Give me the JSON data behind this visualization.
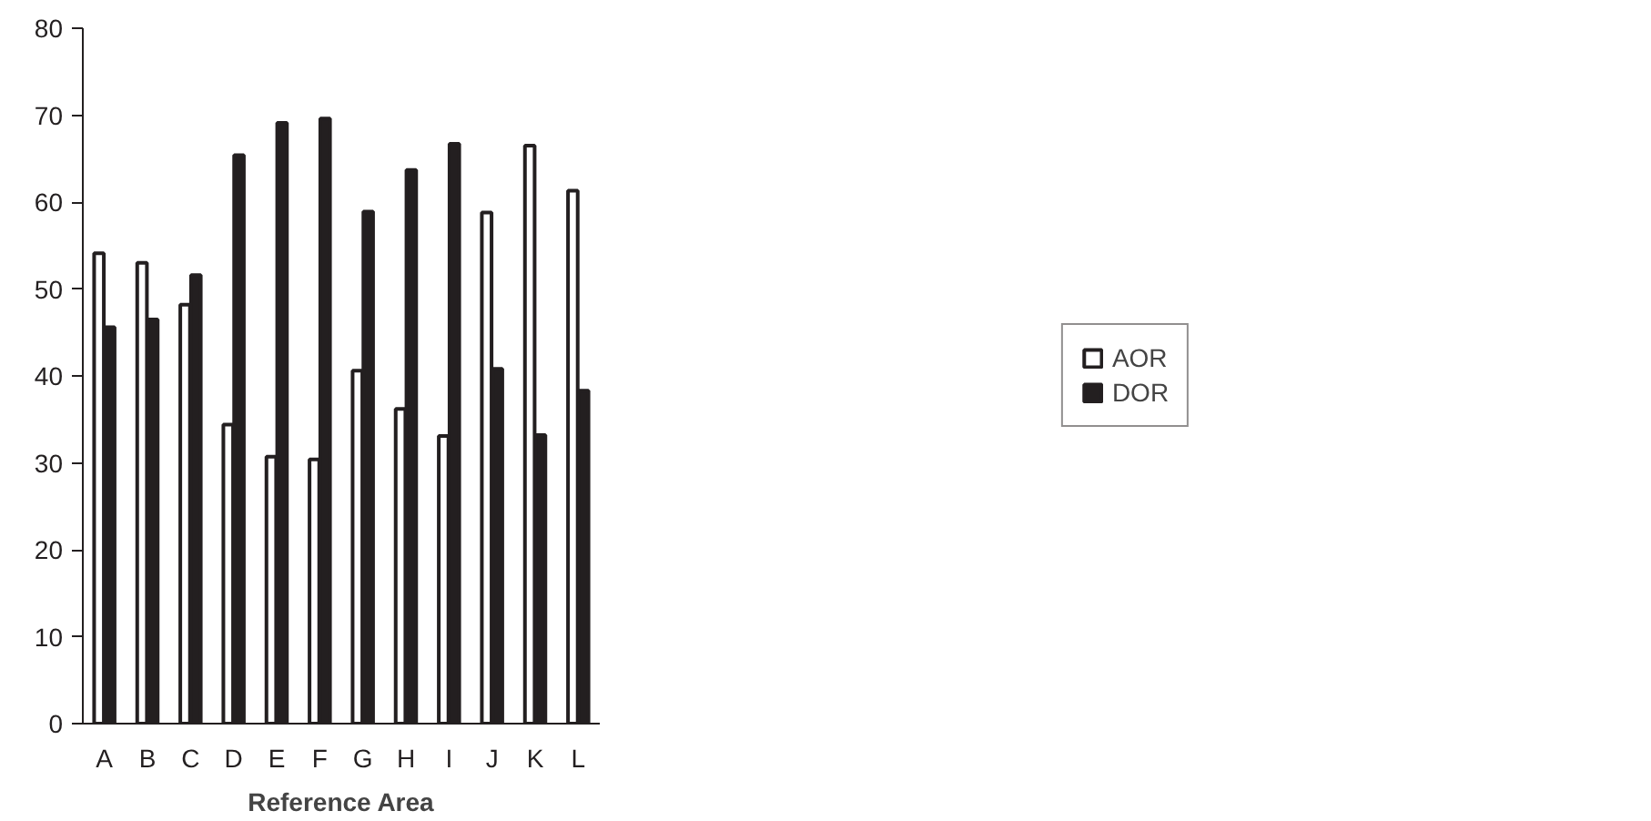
{
  "chart_data": {
    "type": "bar",
    "xlabel": "Reference Area",
    "categories": [
      "A",
      "B",
      "C",
      "D",
      "E",
      "F",
      "G",
      "H",
      "I",
      "J",
      "K",
      "L"
    ],
    "series": [
      {
        "name": "AOR",
        "color": "#ffffff",
        "values": [
          54.1,
          53.0,
          48.2,
          34.4,
          30.7,
          30.4,
          40.6,
          36.2,
          33.1,
          58.8,
          66.5,
          61.3
        ]
      },
      {
        "name": "DOR",
        "color": "#231f20",
        "values": [
          45.6,
          46.5,
          51.6,
          65.4,
          69.1,
          69.6,
          58.9,
          63.7,
          66.7,
          40.8,
          33.2,
          38.3
        ]
      }
    ],
    "ylim": [
      0,
      80
    ],
    "yticks": [
      0,
      10,
      20,
      30,
      40,
      50,
      60,
      70,
      80
    ],
    "grid": false,
    "legend": "right"
  }
}
